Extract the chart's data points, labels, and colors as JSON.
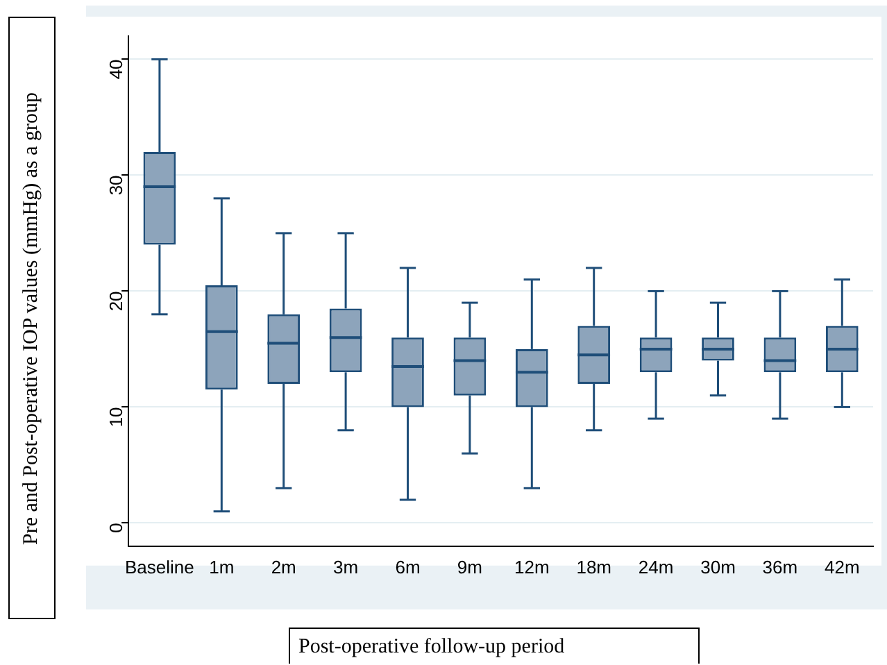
{
  "chart_data": {
    "type": "box",
    "xlabel": "Post-operative follow-up period",
    "ylabel": "Pre and Post-operative IOP values (mmHg) as a group",
    "categories": [
      "Baseline",
      "1m",
      "2m",
      "3m",
      "6m",
      "9m",
      "12m",
      "18m",
      "24m",
      "30m",
      "36m",
      "42m"
    ],
    "color": "#8da4bb",
    "boxes": [
      {
        "low": 18,
        "q1": 24,
        "median": 29,
        "q3": 32,
        "high": 40
      },
      {
        "low": 1,
        "q1": 11.5,
        "median": 16.5,
        "q3": 20.5,
        "high": 28
      },
      {
        "low": 3,
        "q1": 12,
        "median": 15.5,
        "q3": 18,
        "high": 25
      },
      {
        "low": 8,
        "q1": 13,
        "median": 16,
        "q3": 18.5,
        "high": 25
      },
      {
        "low": 2,
        "q1": 10,
        "median": 13.5,
        "q3": 16,
        "high": 22
      },
      {
        "low": 6,
        "q1": 11,
        "median": 14,
        "q3": 16,
        "high": 19
      },
      {
        "low": 3,
        "q1": 10,
        "median": 13,
        "q3": 15,
        "high": 21
      },
      {
        "low": 8,
        "q1": 12,
        "median": 14.5,
        "q3": 17,
        "high": 22
      },
      {
        "low": 9,
        "q1": 13,
        "median": 15,
        "q3": 16,
        "high": 20
      },
      {
        "low": 11,
        "q1": 14,
        "median": 15,
        "q3": 16,
        "high": 19
      },
      {
        "low": 9,
        "q1": 13,
        "median": 14,
        "q3": 16,
        "high": 20
      },
      {
        "low": 10,
        "q1": 13,
        "median": 15,
        "q3": 17,
        "high": 21
      }
    ],
    "ylim": [
      -2,
      42
    ],
    "yticks": [
      0,
      10,
      20,
      30,
      40
    ],
    "grid": "y",
    "legend": false
  }
}
